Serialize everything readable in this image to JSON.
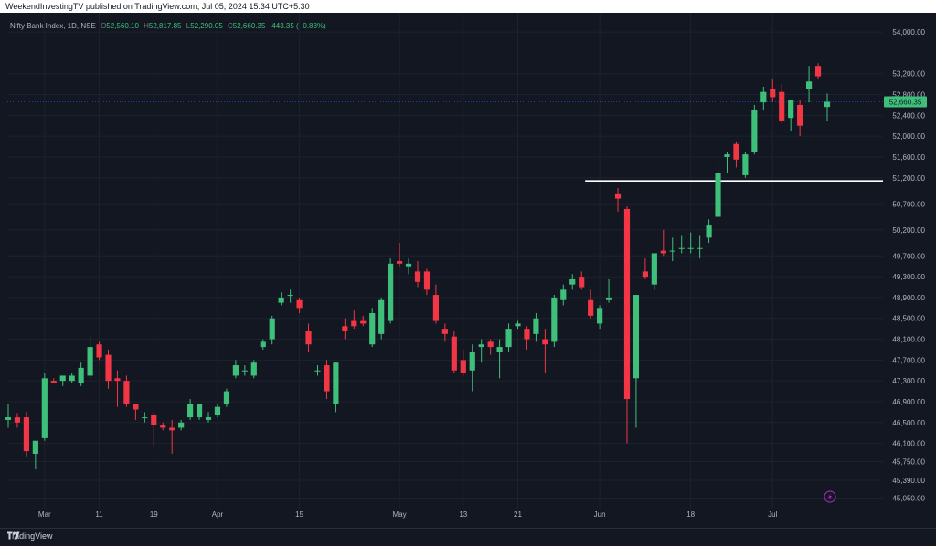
{
  "header": {
    "published_text": "WeekendInvestingTV published on TradingView.com, Jul 05, 2024 15:34 UTC+5:30"
  },
  "legend": {
    "symbol": "Nifty Bank Index, 1D, NSE",
    "open_label": "O",
    "open": "52,560.10",
    "high_label": "H",
    "high": "52,817.85",
    "low_label": "L",
    "low": "52,290.05",
    "close_label": "C",
    "close": "52,660.35",
    "change": "−443.35 (−0.83%)"
  },
  "branding": {
    "name": "TradingView",
    "logo": "tradingview-logo-icon"
  },
  "colors": {
    "up": "#3ec07a",
    "down": "#f23645",
    "background": "#131722",
    "grid": "#1e222d",
    "axis_text": "#b2b5be",
    "level_line": "#ffffff",
    "last_price": "#3ec07a"
  },
  "chart_data": {
    "type": "candlestick",
    "title": "Nifty Bank Index, 1D, NSE",
    "ylim": [
      44900,
      54300
    ],
    "y_ticks": [
      "54,000.00",
      "53,200.00",
      "52,800.00",
      "52,400.00",
      "52,000.00",
      "51,600.00",
      "51,200.00",
      "50,700.00",
      "50,200.00",
      "49,700.00",
      "49,300.00",
      "48,900.00",
      "48,500.00",
      "48,100.00",
      "47,700.00",
      "47,300.00",
      "46,900.00",
      "46,500.00",
      "46,100.00",
      "45,750.00",
      "45,390.00",
      "45,050.00"
    ],
    "x_ticks": [
      {
        "label": "Mar",
        "index": 4
      },
      {
        "label": "11",
        "index": 10
      },
      {
        "label": "19",
        "index": 16
      },
      {
        "label": "Apr",
        "index": 23
      },
      {
        "label": "15",
        "index": 32
      },
      {
        "label": "May",
        "index": 43
      },
      {
        "label": "13",
        "index": 50
      },
      {
        "label": "21",
        "index": 56
      },
      {
        "label": "Jun",
        "index": 65
      },
      {
        "label": "18",
        "index": 75
      },
      {
        "label": "Jul",
        "index": 84
      }
    ],
    "last_price_label": "52,660.35",
    "last_price": 52660.35,
    "horizontal_line": {
      "value": 51140,
      "from_index": 64
    },
    "candles": [
      {
        "o": 46550,
        "h": 46850,
        "l": 46400,
        "c": 46600
      },
      {
        "o": 46600,
        "h": 46680,
        "l": 46400,
        "c": 46500
      },
      {
        "o": 46600,
        "h": 46700,
        "l": 45850,
        "c": 45950
      },
      {
        "o": 45900,
        "h": 46100,
        "l": 45600,
        "c": 46150
      },
      {
        "o": 46200,
        "h": 47450,
        "l": 46150,
        "c": 47350
      },
      {
        "o": 47300,
        "h": 47350,
        "l": 47250,
        "c": 47250
      },
      {
        "o": 47300,
        "h": 47400,
        "l": 47200,
        "c": 47400
      },
      {
        "o": 47300,
        "h": 47450,
        "l": 47250,
        "c": 47400
      },
      {
        "o": 47250,
        "h": 47650,
        "l": 47200,
        "c": 47550
      },
      {
        "o": 47400,
        "h": 48150,
        "l": 47350,
        "c": 47950
      },
      {
        "o": 48000,
        "h": 48050,
        "l": 47700,
        "c": 47750
      },
      {
        "o": 47800,
        "h": 47900,
        "l": 47150,
        "c": 47300
      },
      {
        "o": 47350,
        "h": 47500,
        "l": 46800,
        "c": 47300
      },
      {
        "o": 47300,
        "h": 47400,
        "l": 46800,
        "c": 46850
      },
      {
        "o": 46850,
        "h": 46850,
        "l": 46550,
        "c": 46750
      },
      {
        "o": 46600,
        "h": 46700,
        "l": 46500,
        "c": 46600
      },
      {
        "o": 46650,
        "h": 46700,
        "l": 46050,
        "c": 46450
      },
      {
        "o": 46450,
        "h": 46500,
        "l": 46350,
        "c": 46400
      },
      {
        "o": 46400,
        "h": 46550,
        "l": 45900,
        "c": 46350
      },
      {
        "o": 46400,
        "h": 46550,
        "l": 46350,
        "c": 46500
      },
      {
        "o": 46600,
        "h": 46950,
        "l": 46550,
        "c": 46850
      },
      {
        "o": 46600,
        "h": 46800,
        "l": 46550,
        "c": 46850
      },
      {
        "o": 46550,
        "h": 46700,
        "l": 46500,
        "c": 46600
      },
      {
        "o": 46650,
        "h": 46850,
        "l": 46600,
        "c": 46800
      },
      {
        "o": 46850,
        "h": 47150,
        "l": 46800,
        "c": 47100
      },
      {
        "o": 47400,
        "h": 47700,
        "l": 47350,
        "c": 47600
      },
      {
        "o": 47500,
        "h": 47600,
        "l": 47400,
        "c": 47500
      },
      {
        "o": 47400,
        "h": 47700,
        "l": 47350,
        "c": 47650
      },
      {
        "o": 47950,
        "h": 48100,
        "l": 47900,
        "c": 48050
      },
      {
        "o": 48100,
        "h": 48550,
        "l": 48000,
        "c": 48500
      },
      {
        "o": 48800,
        "h": 49000,
        "l": 48750,
        "c": 48900
      },
      {
        "o": 48950,
        "h": 49050,
        "l": 48800,
        "c": 48950
      },
      {
        "o": 48850,
        "h": 48900,
        "l": 48600,
        "c": 48700
      },
      {
        "o": 48250,
        "h": 48400,
        "l": 47850,
        "c": 48000
      },
      {
        "o": 47500,
        "h": 47600,
        "l": 47400,
        "c": 47500
      },
      {
        "o": 47600,
        "h": 47700,
        "l": 46950,
        "c": 47100
      },
      {
        "o": 46850,
        "h": 47650,
        "l": 46700,
        "c": 47650
      },
      {
        "o": 48350,
        "h": 48500,
        "l": 48100,
        "c": 48250
      },
      {
        "o": 48450,
        "h": 48650,
        "l": 48300,
        "c": 48350
      },
      {
        "o": 48450,
        "h": 48550,
        "l": 48350,
        "c": 48400
      },
      {
        "o": 48000,
        "h": 48700,
        "l": 47950,
        "c": 48600
      },
      {
        "o": 48200,
        "h": 48900,
        "l": 48100,
        "c": 48850
      },
      {
        "o": 48450,
        "h": 49650,
        "l": 48400,
        "c": 49550
      },
      {
        "o": 49600,
        "h": 49950,
        "l": 49500,
        "c": 49550
      },
      {
        "o": 49500,
        "h": 49650,
        "l": 49350,
        "c": 49550
      },
      {
        "o": 49400,
        "h": 49600,
        "l": 49100,
        "c": 49200
      },
      {
        "o": 49400,
        "h": 49450,
        "l": 48950,
        "c": 49050
      },
      {
        "o": 48950,
        "h": 49150,
        "l": 48400,
        "c": 48450
      },
      {
        "o": 48300,
        "h": 48400,
        "l": 48050,
        "c": 48200
      },
      {
        "o": 48150,
        "h": 48250,
        "l": 47450,
        "c": 47500
      },
      {
        "o": 47700,
        "h": 47900,
        "l": 47400,
        "c": 47450
      },
      {
        "o": 47500,
        "h": 48000,
        "l": 47100,
        "c": 47850
      },
      {
        "o": 47950,
        "h": 48100,
        "l": 47650,
        "c": 48000
      },
      {
        "o": 48050,
        "h": 48100,
        "l": 47800,
        "c": 47950
      },
      {
        "o": 47850,
        "h": 48100,
        "l": 47350,
        "c": 47950
      },
      {
        "o": 47950,
        "h": 48400,
        "l": 47850,
        "c": 48300
      },
      {
        "o": 48350,
        "h": 48450,
        "l": 48300,
        "c": 48400
      },
      {
        "o": 48300,
        "h": 48350,
        "l": 47900,
        "c": 48100
      },
      {
        "o": 48200,
        "h": 48600,
        "l": 48050,
        "c": 48500
      },
      {
        "o": 48100,
        "h": 48300,
        "l": 47450,
        "c": 48000
      },
      {
        "o": 48050,
        "h": 48950,
        "l": 47950,
        "c": 48900
      },
      {
        "o": 48850,
        "h": 49150,
        "l": 48750,
        "c": 49050
      },
      {
        "o": 49150,
        "h": 49350,
        "l": 49050,
        "c": 49250
      },
      {
        "o": 49300,
        "h": 49400,
        "l": 49050,
        "c": 49100
      },
      {
        "o": 48850,
        "h": 49050,
        "l": 48500,
        "c": 48550
      },
      {
        "o": 48400,
        "h": 48750,
        "l": 48300,
        "c": 48700
      },
      {
        "o": 48850,
        "h": 49250,
        "l": 48800,
        "c": 48900
      },
      {
        "o": 50900,
        "h": 51000,
        "l": 50550,
        "c": 50800
      },
      {
        "o": 50600,
        "h": 50650,
        "l": 46100,
        "c": 46950
      },
      {
        "o": 47350,
        "h": 48950,
        "l": 46400,
        "c": 48950
      },
      {
        "o": 49400,
        "h": 49650,
        "l": 49250,
        "c": 49300
      },
      {
        "o": 49150,
        "h": 49750,
        "l": 49050,
        "c": 49750
      },
      {
        "o": 49800,
        "h": 50200,
        "l": 49700,
        "c": 49750
      },
      {
        "o": 49800,
        "h": 50050,
        "l": 49600,
        "c": 49800
      },
      {
        "o": 49850,
        "h": 50100,
        "l": 49750,
        "c": 49850
      },
      {
        "o": 49850,
        "h": 50150,
        "l": 49750,
        "c": 49850
      },
      {
        "o": 49850,
        "h": 50100,
        "l": 49650,
        "c": 49850
      },
      {
        "o": 50050,
        "h": 50400,
        "l": 49950,
        "c": 50300
      },
      {
        "o": 50450,
        "h": 51500,
        "l": 50450,
        "c": 51300
      },
      {
        "o": 51600,
        "h": 51700,
        "l": 51300,
        "c": 51650
      },
      {
        "o": 51850,
        "h": 51900,
        "l": 51400,
        "c": 51550
      },
      {
        "o": 51250,
        "h": 51700,
        "l": 51200,
        "c": 51650
      },
      {
        "o": 51700,
        "h": 52600,
        "l": 51650,
        "c": 52500
      },
      {
        "o": 52650,
        "h": 52950,
        "l": 52500,
        "c": 52850
      },
      {
        "o": 52900,
        "h": 53100,
        "l": 52650,
        "c": 52750
      },
      {
        "o": 52850,
        "h": 53000,
        "l": 52250,
        "c": 52300
      },
      {
        "o": 52350,
        "h": 52700,
        "l": 52100,
        "c": 52700
      },
      {
        "o": 52600,
        "h": 52700,
        "l": 52000,
        "c": 52200
      },
      {
        "o": 52900,
        "h": 53350,
        "l": 52650,
        "c": 53050
      },
      {
        "o": 53350,
        "h": 53400,
        "l": 53100,
        "c": 53150
      },
      {
        "o": 52560.1,
        "h": 52817.85,
        "l": 52290.05,
        "c": 52660.35
      }
    ]
  }
}
